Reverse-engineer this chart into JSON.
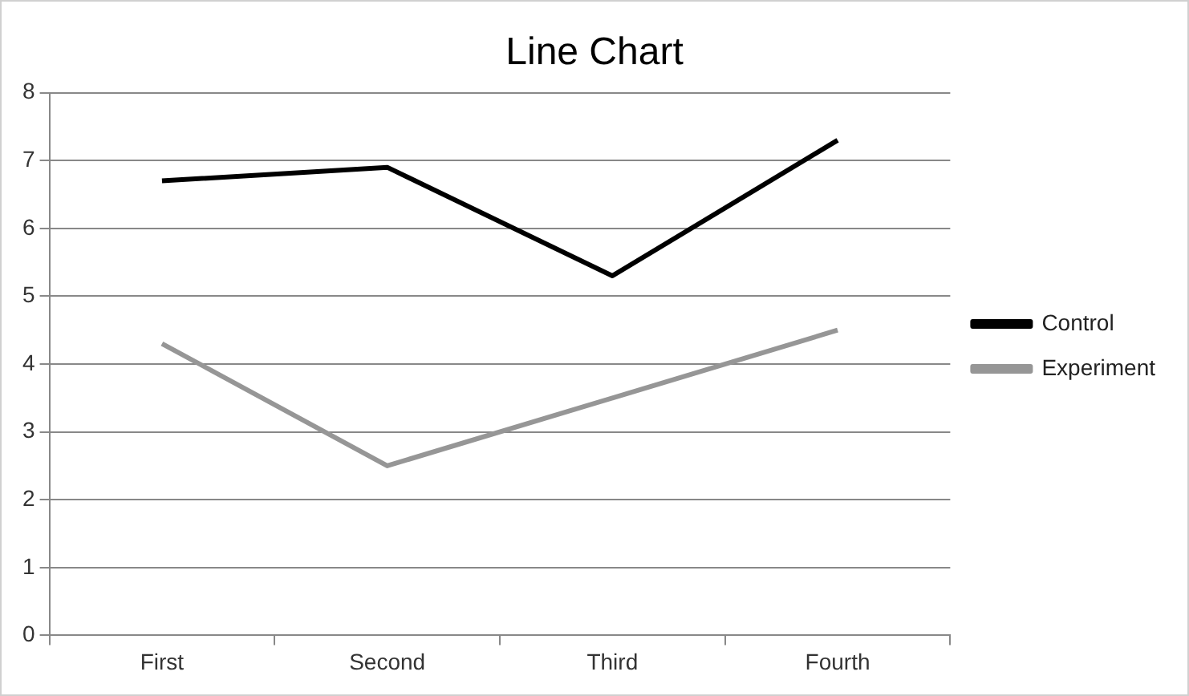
{
  "chart_data": {
    "type": "line",
    "title": "Line Chart",
    "categories": [
      "First",
      "Second",
      "Third",
      "Fourth"
    ],
    "series": [
      {
        "name": "Control",
        "color": "#000000",
        "values": [
          6.7,
          6.9,
          5.3,
          7.3
        ]
      },
      {
        "name": "Experiment",
        "color": "#969696",
        "values": [
          4.3,
          2.5,
          3.5,
          4.5
        ]
      }
    ],
    "ylim": [
      0,
      8
    ],
    "yticks": [
      0,
      1,
      2,
      3,
      4,
      5,
      6,
      7,
      8
    ],
    "grid": "y",
    "legend": "right",
    "marker": "none",
    "line_style": "solid"
  }
}
